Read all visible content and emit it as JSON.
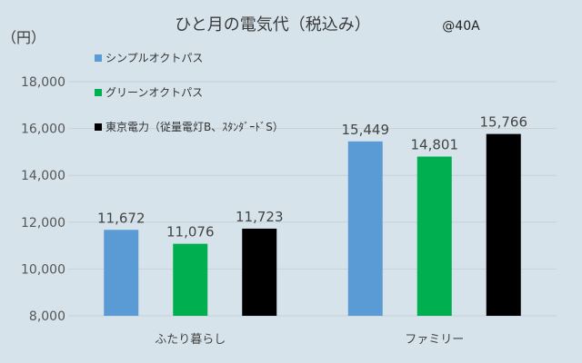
{
  "chart_data": {
    "type": "bar",
    "title": "ひと月の電気代（税込み）",
    "note": "@40A",
    "unit_label": "（円）",
    "categories": [
      "ふたり暮らし",
      "ファミリー"
    ],
    "series": [
      {
        "name": "シンプルオクトパス",
        "color": "#5b9bd5",
        "values": [
          11672,
          15449
        ],
        "labels": [
          "11,672",
          "15,449"
        ]
      },
      {
        "name": "グリーンオクトパス",
        "color": "#00b050",
        "values": [
          11076,
          14801
        ],
        "labels": [
          "11,076",
          "14,801"
        ]
      },
      {
        "name": "東京電力（従量電灯B、ｽﾀﾝﾀﾞｰﾄﾞS）",
        "color": "#000000",
        "values": [
          11723,
          15766
        ],
        "labels": [
          "11,723",
          "15,766"
        ]
      }
    ],
    "ylim": [
      8000,
      18000
    ],
    "yticks": [
      8000,
      10000,
      12000,
      14000,
      16000,
      18000
    ],
    "ytick_labels": [
      "8,000",
      "10,000",
      "12,000",
      "14,000",
      "16,000",
      "18,000"
    ],
    "grid": true,
    "legend_position": "top-left"
  }
}
